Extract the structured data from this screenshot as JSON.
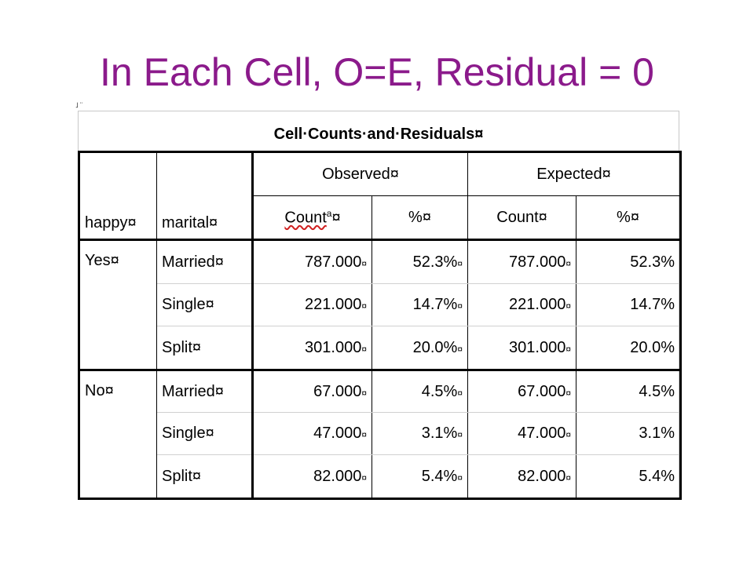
{
  "slide": {
    "title": "In Each Cell, O=E, Residual = 0"
  },
  "marks": {
    "top_left": "˩ ¨"
  },
  "table": {
    "caption": "Cell·Counts·and·Residuals¤",
    "group_headers": {
      "observed": "Observed¤",
      "expected": "Expected¤"
    },
    "col_headers": {
      "happy": "happy¤",
      "marital": "marital¤",
      "obs_count": "Count",
      "obs_count_sup": "a",
      "obs_count_mark": "¤",
      "obs_pct": "%¤",
      "exp_count": "Count¤",
      "exp_pct": "%¤"
    },
    "groups": [
      {
        "happy": "Yes¤",
        "rows": [
          {
            "marital": "Married¤",
            "obs_count": "787.000",
            "obs_pct": "52.3%",
            "exp_count": "787.000",
            "exp_pct": "52.3%"
          },
          {
            "marital": "Single¤",
            "obs_count": "221.000",
            "obs_pct": "14.7%",
            "exp_count": "221.000",
            "exp_pct": "14.7%"
          },
          {
            "marital": "Split¤",
            "obs_count": "301.000",
            "obs_pct": "20.0%",
            "exp_count": "301.000",
            "exp_pct": "20.0%"
          }
        ]
      },
      {
        "happy": "No¤",
        "rows": [
          {
            "marital": "Married¤",
            "obs_count": "67.000",
            "obs_pct": "4.5%",
            "exp_count": "67.000",
            "exp_pct": "4.5%"
          },
          {
            "marital": "Single¤",
            "obs_count": "47.000",
            "obs_pct": "3.1%",
            "exp_count": "47.000",
            "exp_pct": "3.1%"
          },
          {
            "marital": "Split¤",
            "obs_count": "82.000",
            "obs_pct": "5.4%",
            "exp_count": "82.000",
            "exp_pct": "5.4%"
          }
        ]
      }
    ],
    "cell_mark": "¤",
    "colors": {
      "title": "#8b1a8b",
      "grid": "#000000"
    }
  }
}
